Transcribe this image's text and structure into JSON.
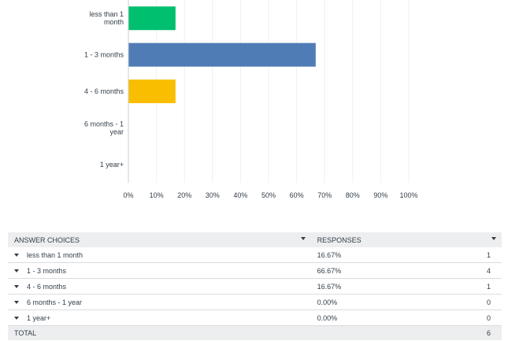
{
  "chart_data": {
    "type": "bar",
    "orientation": "horizontal",
    "categories": [
      [
        "less than 1",
        "month"
      ],
      [
        "1 - 3 months"
      ],
      [
        "4 - 6 months"
      ],
      [
        "6 months - 1",
        "year"
      ],
      [
        "1 year+"
      ]
    ],
    "values": [
      16.67,
      66.67,
      16.67,
      0,
      0
    ],
    "colors": [
      "#00bf6f",
      "#507cb6",
      "#f9be00",
      "#6bc8cd",
      "#ff8b4f"
    ],
    "xticks": [
      "0%",
      "10%",
      "20%",
      "30%",
      "40%",
      "50%",
      "60%",
      "70%",
      "80%",
      "90%",
      "100%"
    ],
    "xlim": [
      0,
      100
    ],
    "grid": true,
    "title": "",
    "xlabel": "",
    "ylabel": ""
  },
  "table": {
    "headers": {
      "choices": "ANSWER CHOICES",
      "responses": "RESPONSES"
    },
    "rows": [
      {
        "choice": "less than 1 month",
        "percent": "16.67%",
        "count": "1"
      },
      {
        "choice": "1 - 3 months",
        "percent": "66.67%",
        "count": "4"
      },
      {
        "choice": "4 - 6 months",
        "percent": "16.67%",
        "count": "1"
      },
      {
        "choice": "6 months - 1 year",
        "percent": "0.00%",
        "count": "0"
      },
      {
        "choice": "1 year+",
        "percent": "0.00%",
        "count": "0"
      }
    ],
    "total_label": "TOTAL",
    "total_count": "6"
  }
}
